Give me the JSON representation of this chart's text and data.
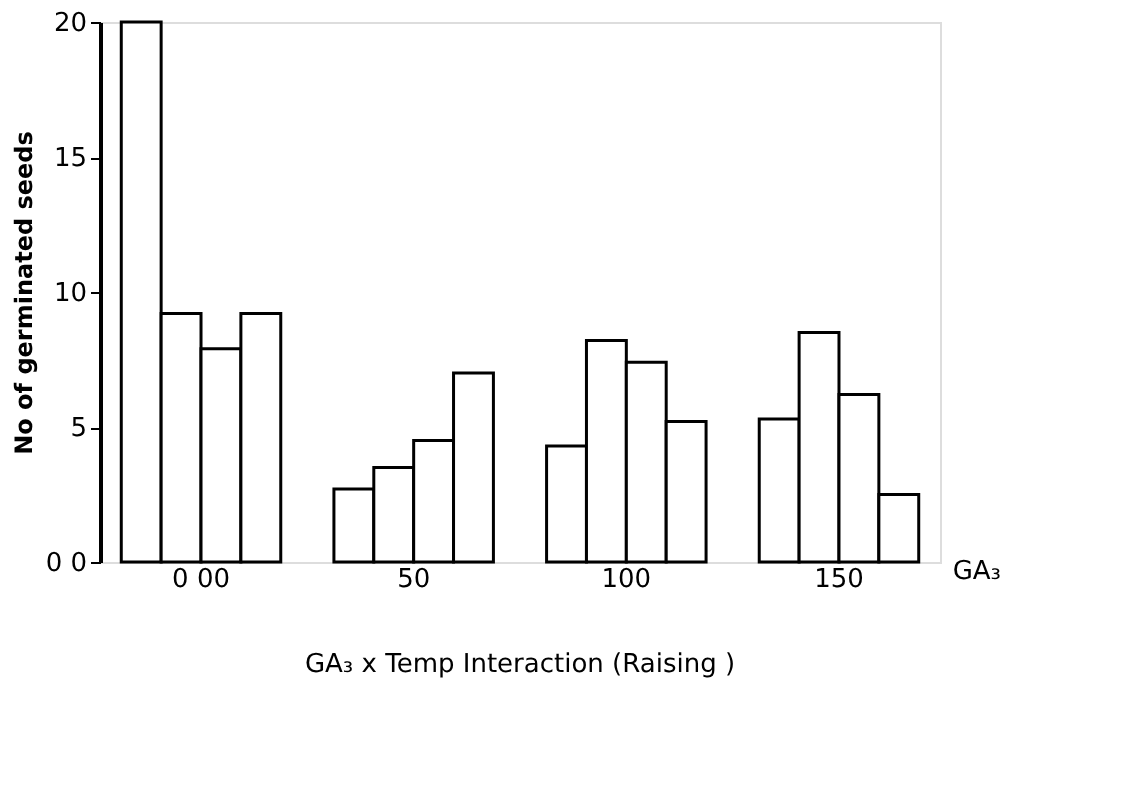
{
  "chart_data": {
    "type": "bar",
    "title": "GA₃ x Temp Interaction (Raising )",
    "xlabel": "GA₃",
    "ylabel": "No of germinated seeds",
    "categories": [
      "0 00",
      "50",
      "100",
      "150"
    ],
    "series": [
      {
        "color": "#ffffff",
        "values": [
          20,
          2.7,
          4.3,
          5.3
        ]
      },
      {
        "color": "#ffffff",
        "values": [
          9.2,
          3.5,
          8.2,
          8.5
        ]
      },
      {
        "color": "#ffffff",
        "values": [
          7.9,
          4.5,
          7.4,
          6.2
        ]
      },
      {
        "color": "#ffffff",
        "values": [
          9.2,
          7.0,
          5.2,
          2.5
        ]
      }
    ],
    "ylim": [
      0,
      20
    ],
    "yticks": [
      {
        "value": 0,
        "label": "0 0"
      },
      5,
      10,
      15,
      20
    ],
    "grid": false
  }
}
